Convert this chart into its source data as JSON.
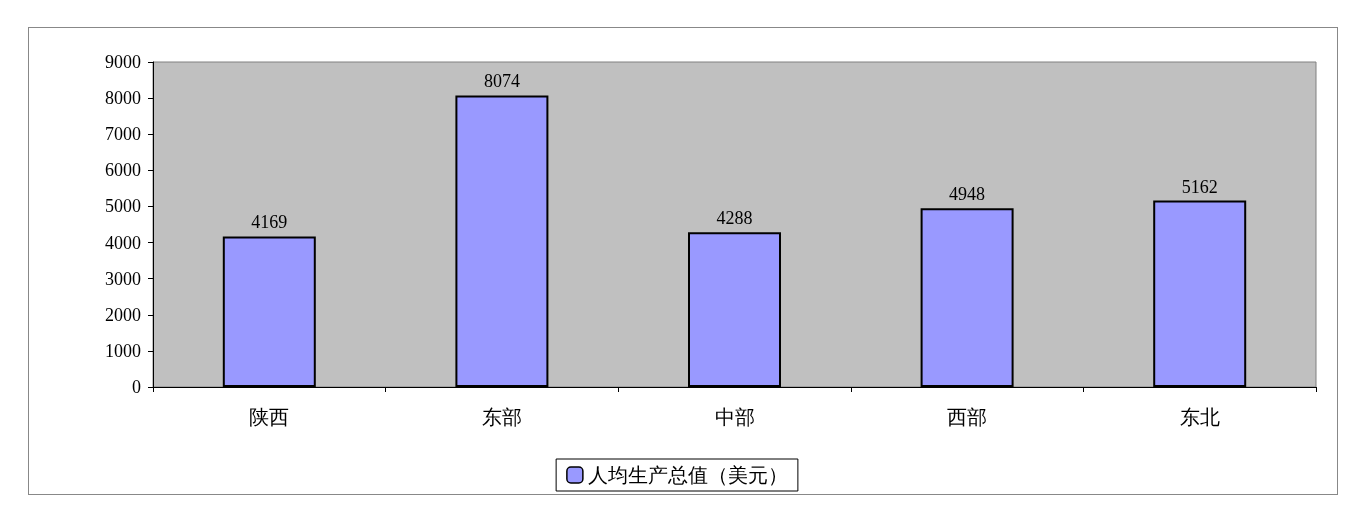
{
  "chart_data": {
    "type": "bar",
    "categories": [
      "陕西",
      "东部",
      "中部",
      "西部",
      "东北"
    ],
    "series": [
      {
        "name": "人均生产总值（美元）",
        "color": "#9999ff",
        "values": [
          4169,
          8074,
          4288,
          4948,
          5162
        ]
      }
    ],
    "ylim": [
      0,
      9000
    ],
    "yticks": [
      0,
      1000,
      2000,
      3000,
      4000,
      5000,
      6000,
      7000,
      8000,
      9000
    ],
    "data_labels": true,
    "grid": false,
    "legend": "bottom"
  }
}
